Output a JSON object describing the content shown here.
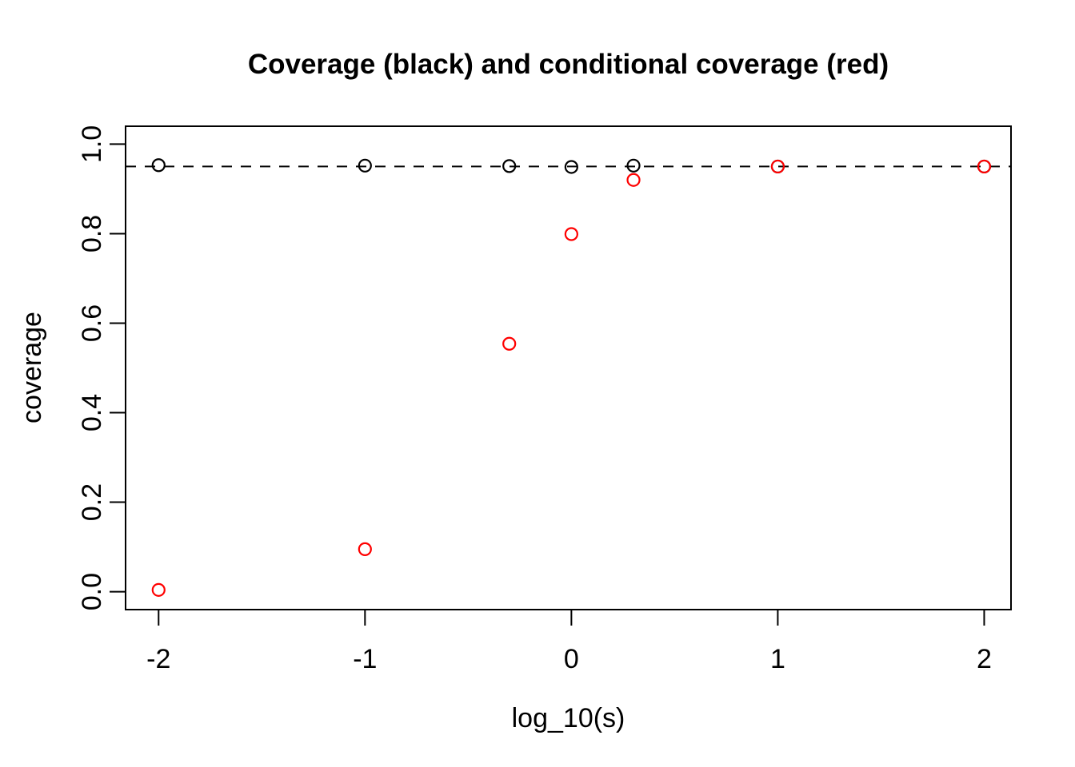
{
  "page": {
    "background": "#FFFFFF"
  },
  "chart_data": {
    "type": "scatter",
    "title": "Coverage (black) and conditional coverage (red)",
    "xlabel": "log_10(s)",
    "ylabel": "coverage",
    "xlim": [
      -2.16,
      2.13
    ],
    "ylim": [
      -0.04,
      1.04
    ],
    "x_ticks": [
      -2,
      -1,
      0,
      1,
      2
    ],
    "x_tick_labels": [
      "-2",
      "-1",
      "0",
      "1",
      "2"
    ],
    "y_ticks": [
      0,
      0.2,
      0.4,
      0.6,
      0.8,
      1
    ],
    "y_tick_labels": [
      "0.0",
      "0.2",
      "0.4",
      "0.6",
      "0.8",
      "1.0"
    ],
    "grid": false,
    "legend_position": "none",
    "marker_style": "open-circle",
    "reference_line": {
      "y": 0.95,
      "style": "dashed",
      "color": "#000000"
    },
    "colors": {
      "black": "#000000",
      "red": "#FF0000",
      "background": "#FFFFFF"
    },
    "series": [
      {
        "name": "coverage (black)",
        "color": "#000000",
        "x": [
          -2,
          -1,
          -0.301,
          0,
          0.301,
          1,
          2
        ],
        "y": [
          0.953,
          0.952,
          0.951,
          0.949,
          0.952,
          0.95,
          0.95
        ]
      },
      {
        "name": "conditional coverage (red)",
        "color": "#FF0000",
        "x": [
          -2,
          -1,
          -0.301,
          0,
          0.301,
          1,
          2
        ],
        "y": [
          0.004,
          0.095,
          0.554,
          0.799,
          0.92,
          0.95,
          0.95
        ]
      }
    ]
  }
}
